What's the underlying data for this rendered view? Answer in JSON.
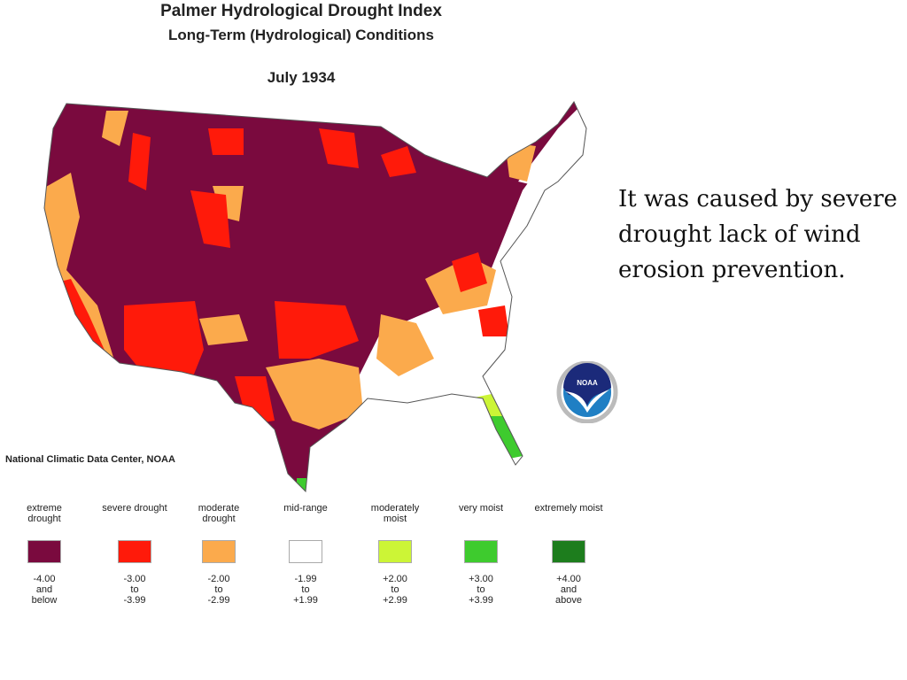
{
  "header": {
    "title": "Palmer Hydrological Drought Index",
    "subtitle": "Long-Term (Hydrological) Conditions",
    "date": "July 1934"
  },
  "credit": "National Climatic Data Center, NOAA",
  "logo": {
    "label": "NOAA"
  },
  "legend": [
    {
      "label": "extreme drought",
      "range": "-4.00\nand\nbelow",
      "color": "#7a0a3e"
    },
    {
      "label": "severe drought",
      "range": "-3.00\nto\n-3.99",
      "color": "#ff1a0a"
    },
    {
      "label": "moderate drought",
      "range": "-2.00\nto\n-2.99",
      "color": "#fbaa4c"
    },
    {
      "label": "mid-range",
      "range": "-1.99\nto\n+1.99",
      "color": "#ffffff"
    },
    {
      "label": "moderately moist",
      "range": "+2.00\nto\n+2.99",
      "color": "#ccf536"
    },
    {
      "label": "very moist",
      "range": "+3.00\nto\n+3.99",
      "color": "#3ecb2e"
    },
    {
      "label": "extremely moist",
      "range": "+4.00\nand\nabove",
      "color": "#1d7d1d"
    }
  ],
  "caption": "It was caused by severe drought lack of wind erosion prevention."
}
